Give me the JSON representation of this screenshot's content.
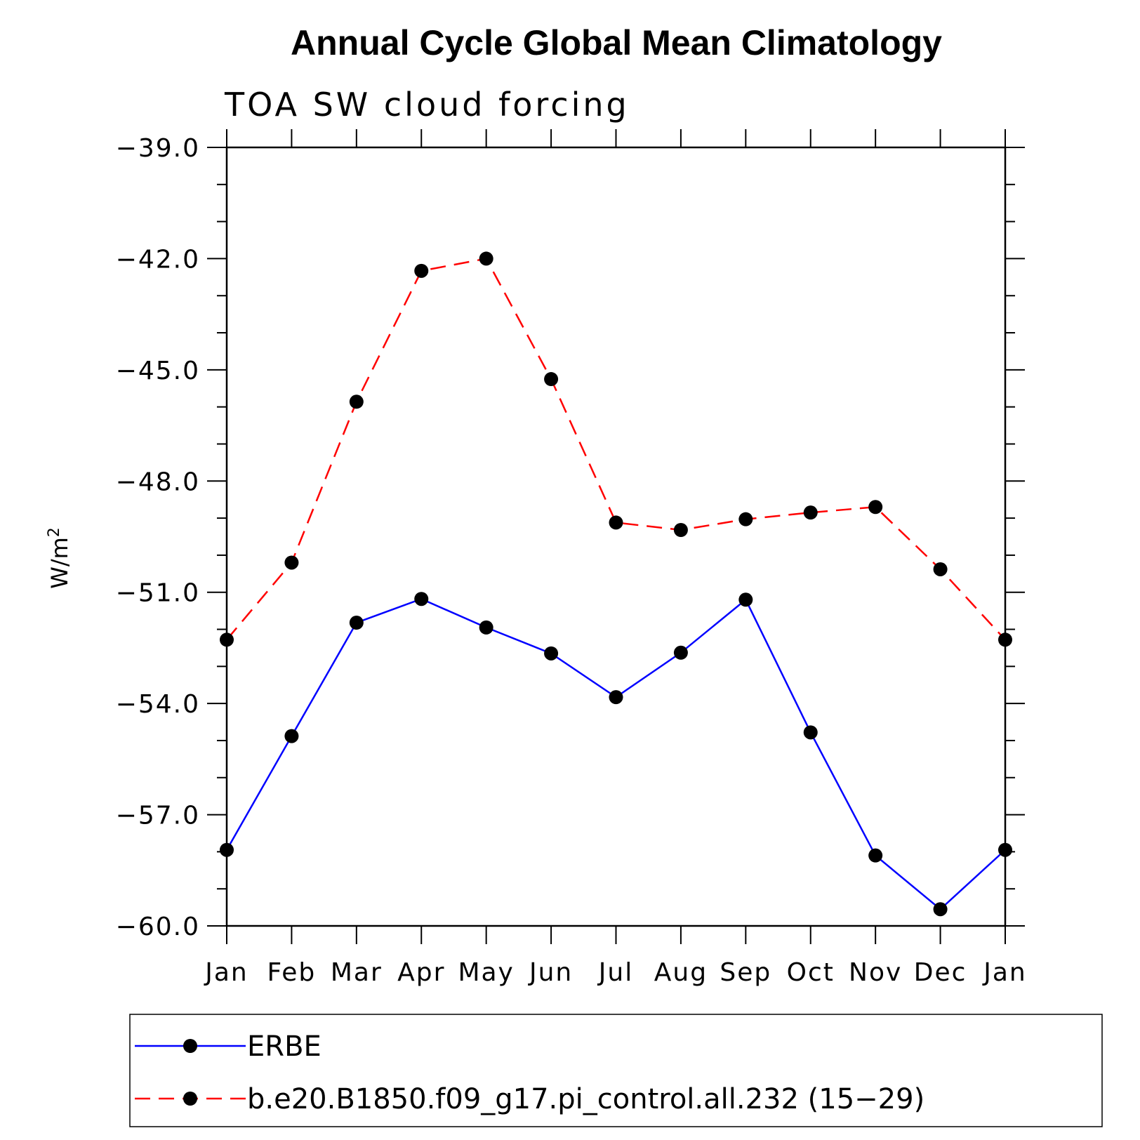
{
  "chart_data": {
    "type": "line",
    "title": "Annual Cycle Global Mean Climatology",
    "subtitle": "TOA SW cloud forcing",
    "ylabel": "W/m",
    "ylabel_superscript": "2",
    "xlabel": "",
    "ylim": [
      -60.0,
      -39.0
    ],
    "y_ticks": [
      "−39.0",
      "−42.0",
      "−45.0",
      "−48.0",
      "−51.0",
      "−54.0",
      "−57.0",
      "−60.0"
    ],
    "y_tick_values": [
      -39.0,
      -42.0,
      -45.0,
      -48.0,
      -51.0,
      -54.0,
      -57.0,
      -60.0
    ],
    "categories": [
      "Jan",
      "Feb",
      "Mar",
      "Apr",
      "May",
      "Jun",
      "Jul",
      "Aug",
      "Sep",
      "Oct",
      "Nov",
      "Dec",
      "Jan"
    ],
    "series": [
      {
        "name": "ERBE",
        "color": "#0000ff",
        "dashed": false,
        "values": [
          -57.95,
          -54.88,
          -51.82,
          -51.18,
          -51.95,
          -52.65,
          -53.83,
          -52.63,
          -51.2,
          -54.78,
          -58.1,
          -59.55,
          -57.95
        ]
      },
      {
        "name": "b.e20.B1850.f09_g17.pi_control.all.232 (15−29)",
        "color": "#ff0000",
        "dashed": true,
        "values": [
          -52.28,
          -50.2,
          -45.86,
          -42.33,
          -42.0,
          -45.25,
          -49.12,
          -49.32,
          -49.03,
          -48.85,
          -48.7,
          -50.38,
          -52.28
        ]
      }
    ],
    "legend": {
      "placement": "bottom",
      "entries": [
        "ERBE",
        "b.e20.B1850.f09_g17.pi_control.all.232 (15−29)"
      ]
    },
    "grid": false
  }
}
